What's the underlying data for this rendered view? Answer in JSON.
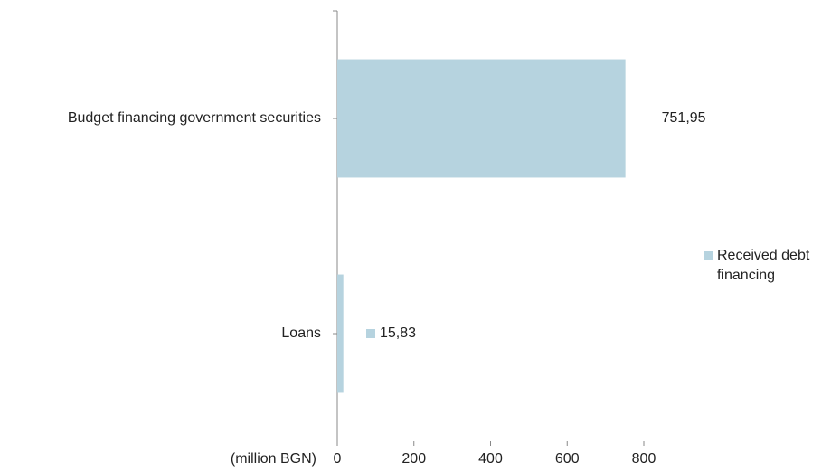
{
  "chart_data": {
    "type": "hbar",
    "x_label": "(million BGN)",
    "categories": [
      "Budget financing government securities",
      "Loans"
    ],
    "series": [
      {
        "name": "Received debt financing",
        "color": "#b6d3df",
        "values": [
          751.95,
          15.83
        ],
        "value_labels": [
          "751,95",
          "15,83"
        ]
      }
    ],
    "xlim": [
      0,
      800
    ],
    "xticks": [
      0,
      200,
      400,
      600,
      800
    ],
    "legend": "right"
  }
}
